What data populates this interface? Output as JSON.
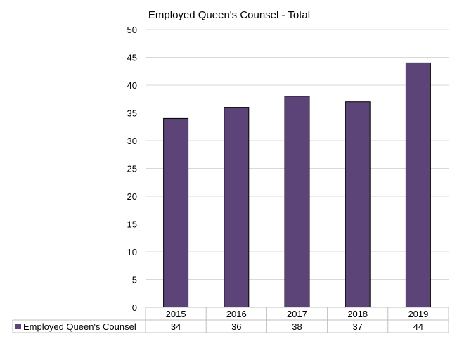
{
  "chart_data": {
    "type": "bar",
    "title": "Employed Queen's Counsel - Total",
    "xlabel": "",
    "ylabel": "",
    "categories": [
      "2015",
      "2016",
      "2017",
      "2018",
      "2019"
    ],
    "series": [
      {
        "name": "Employed Queen's Counsel",
        "values": [
          34,
          36,
          38,
          37,
          44
        ],
        "color": "#5c4478"
      }
    ],
    "ylim": [
      0,
      50
    ],
    "yticks": [
      0,
      5,
      10,
      15,
      20,
      25,
      30,
      35,
      40,
      45,
      50
    ],
    "grid": true,
    "legend": "data-table-bottom",
    "data_table": true
  }
}
